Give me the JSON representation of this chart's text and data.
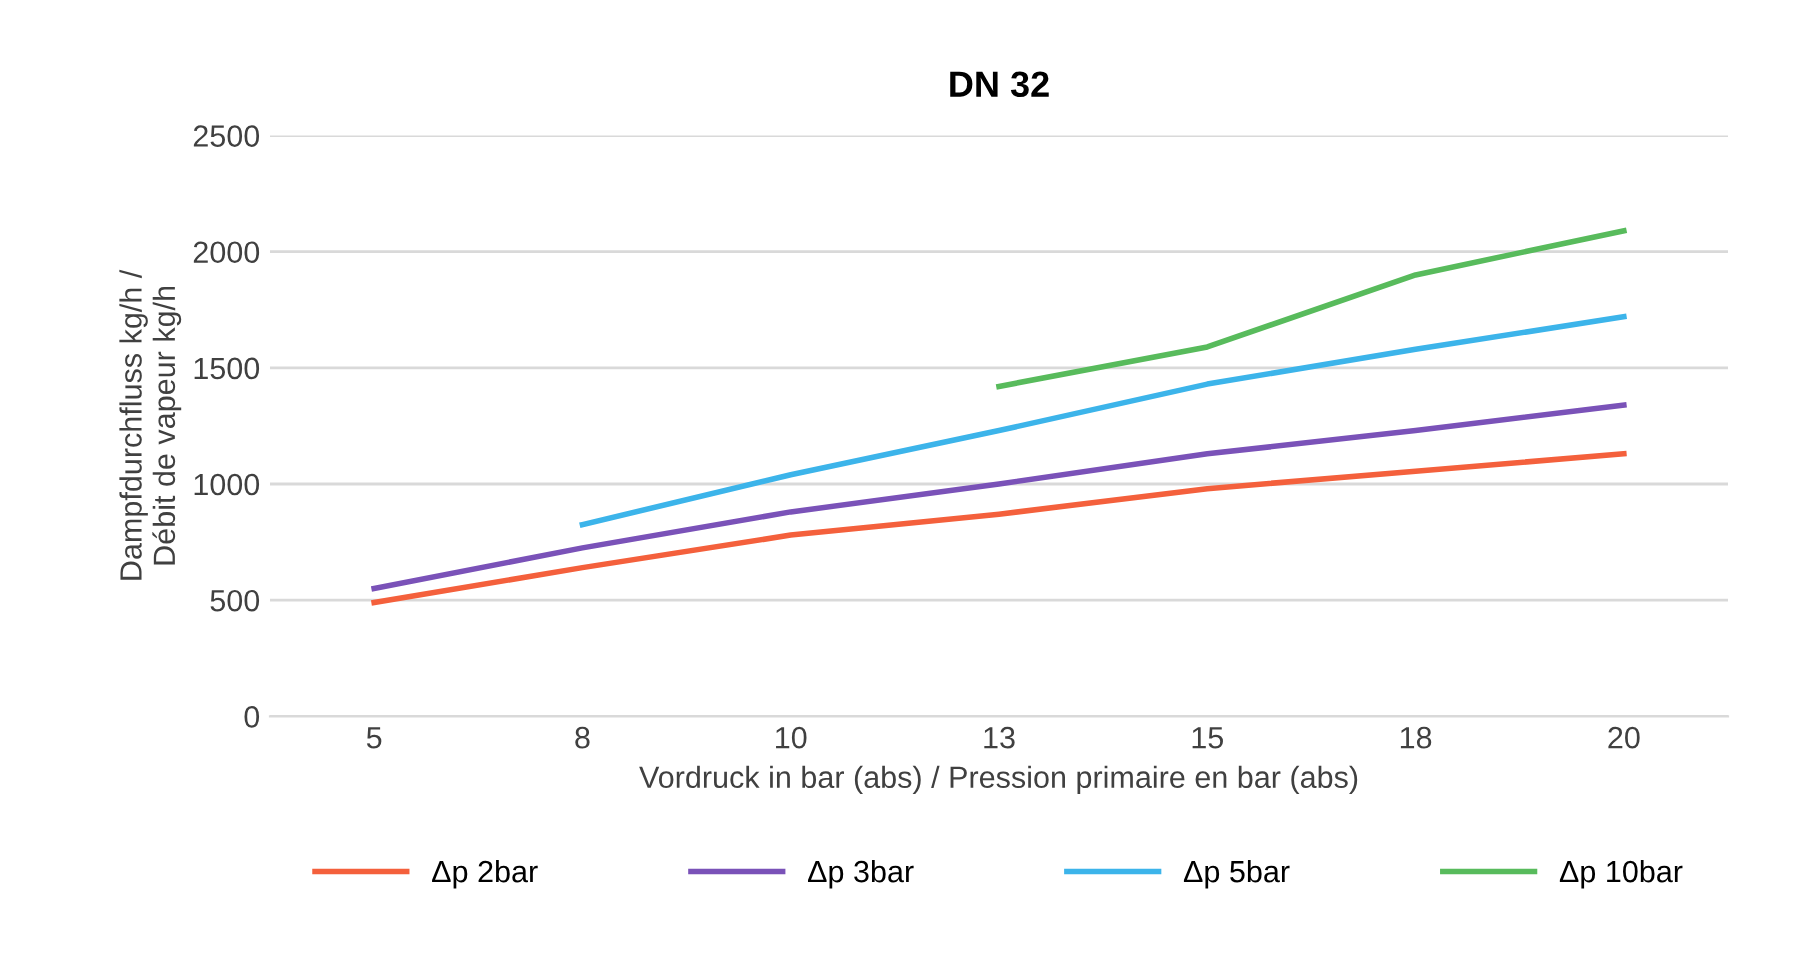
{
  "chart_data": {
    "type": "line",
    "title": "DN 32",
    "xlabel": "Vordruck in bar (abs) / Pression primaire en bar (abs)",
    "ylabel": "Dampfdurchfluss kg/h /\nDébit de vapeur kg/h",
    "categories": [
      "5",
      "8",
      "10",
      "13",
      "15",
      "18",
      "20"
    ],
    "series": [
      {
        "name": "Δp 2bar",
        "color": "#f4603c",
        "values": [
          490,
          640,
          780,
          870,
          980,
          1055,
          1130
        ]
      },
      {
        "name": "Δp 3bar",
        "color": "#7a52b8",
        "values": [
          550,
          725,
          880,
          1000,
          1130,
          1230,
          1340
        ]
      },
      {
        "name": "Δp 5bar",
        "color": "#3cb4ea",
        "values": [
          null,
          825,
          1040,
          1230,
          1430,
          1580,
          1720
        ]
      },
      {
        "name": "Δp 10bar",
        "color": "#58bb5c",
        "values": [
          null,
          null,
          null,
          1420,
          1590,
          1900,
          2090
        ]
      }
    ],
    "ylim": [
      0,
      2500
    ],
    "yticks": [
      0,
      500,
      1000,
      1500,
      2000,
      2500
    ],
    "grid": "y",
    "legend": "bottom",
    "marker": "none",
    "line_style": "solid"
  }
}
